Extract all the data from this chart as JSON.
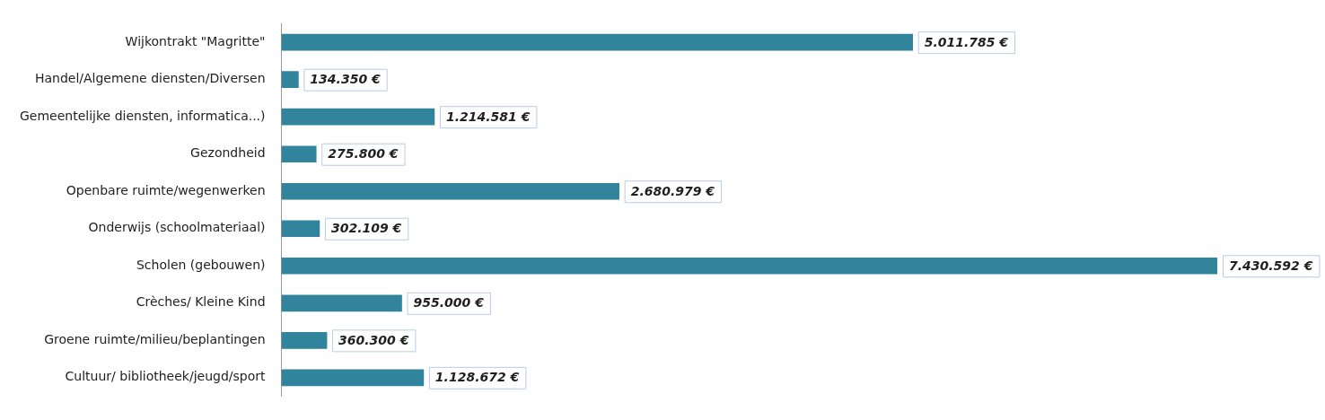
{
  "chart_data": {
    "type": "bar",
    "orientation": "horizontal",
    "categories": [
      "Wijkontrakt \"Magritte\"",
      "Handel/Algemene diensten/Diversen",
      "Gemeentelijke diensten, informatica...)",
      "Gezondheid",
      "Openbare ruimte/wegenwerken",
      "Onderwijs (schoolmateriaal)",
      "Scholen (gebouwen)",
      "Crèches/ Kleine Kind",
      "Groene ruimte/milieu/beplantingen",
      "Cultuur/ bibliotheek/jeugd/sport"
    ],
    "values": [
      5011785,
      134350,
      1214581,
      275800,
      2680979,
      302109,
      7430592,
      955000,
      360300,
      1128672
    ],
    "value_labels": [
      "5.011.785 €",
      "134.350 €",
      "1.214.581 €",
      "275.800 €",
      "2.680.979 €",
      "302.109 €",
      "7.430.592 €",
      "955.000 €",
      "360.300 €",
      "1.128.672 €"
    ],
    "color": "#31849b"
  }
}
